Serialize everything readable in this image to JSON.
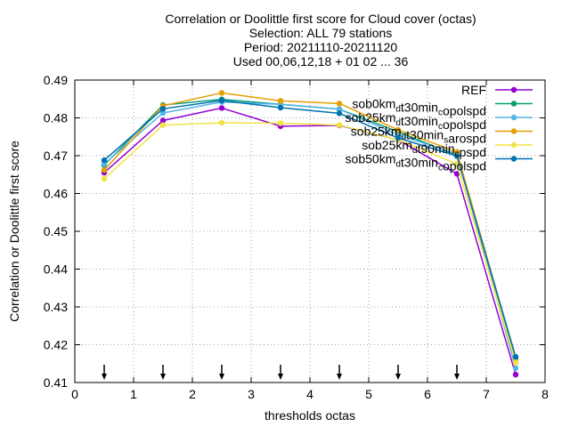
{
  "chart_data": {
    "type": "line",
    "title": [
      "Correlation or Doolittle first score  for Cloud cover (octas)",
      "Selection: ALL     79 stations",
      "Period: 20211110-20211120",
      "Used 00,06,12,18 + 01 02 ... 36"
    ],
    "xlabel": "thresholds octas",
    "ylabel": "Correlation or Doolittle first score",
    "xlim": [
      0,
      8
    ],
    "ylim": [
      0.41,
      0.49
    ],
    "xticks": [
      0,
      1,
      2,
      3,
      4,
      5,
      6,
      7,
      8
    ],
    "yticks": [
      0.41,
      0.42,
      0.43,
      0.44,
      0.45,
      0.46,
      0.47,
      0.48,
      0.49
    ],
    "grid": true,
    "legend_position": "top-right",
    "x": [
      0.5,
      1.5,
      2.5,
      3.5,
      4.5,
      5.5,
      6.5,
      7.5
    ],
    "arrows_x": [
      0.5,
      1.5,
      2.5,
      3.5,
      4.5,
      5.5,
      6.5
    ],
    "series": [
      {
        "name": "REF",
        "color": "#9400d3",
        "values": [
          0.4655,
          0.4793,
          0.4826,
          0.4778,
          0.478,
          0.4742,
          0.4652,
          0.4121
        ]
      },
      {
        "name": "sob0km_d t30min_c opolspd",
        "color": "#009e73",
        "values": [
          0.4675,
          0.4834,
          0.4849,
          0.4836,
          0.4823,
          0.4763,
          0.4701,
          0.4163
        ]
      },
      {
        "name": "sob25km_d t30min_c opolspd",
        "color": "#56b4e9",
        "values": [
          0.4678,
          0.4813,
          0.4842,
          0.4836,
          0.4823,
          0.4755,
          0.4705,
          0.4138
        ]
      },
      {
        "name": "sob25km_d t30min_s arospd",
        "color": "#e69f00",
        "values": [
          0.4662,
          0.4832,
          0.4866,
          0.4845,
          0.4838,
          0.4768,
          0.471,
          0.4165
        ]
      },
      {
        "name": "sob25km_d t90min_c pspd",
        "color": "#f0e442",
        "values": [
          0.4639,
          0.4781,
          0.4787,
          0.4786,
          0.4781,
          0.4742,
          0.4678,
          0.4152
        ]
      },
      {
        "name": "sob50km_d t30min_c opolspd",
        "color": "#0072b2",
        "values": [
          0.4688,
          0.4824,
          0.4846,
          0.4827,
          0.4812,
          0.4747,
          0.4699,
          0.4168
        ]
      }
    ]
  }
}
